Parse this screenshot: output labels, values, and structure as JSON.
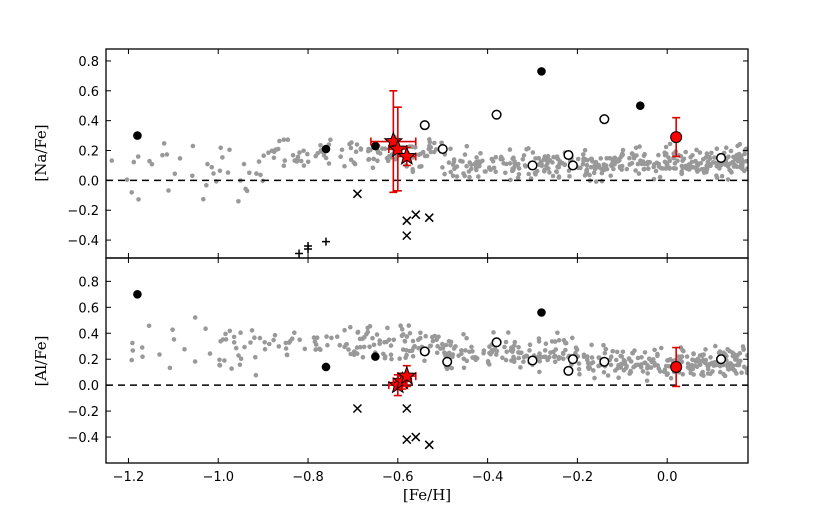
{
  "chart_data": [
    {
      "type": "scatter",
      "panel": "top",
      "ylabel": "[Na/Fe]",
      "xlim": [
        -1.25,
        0.18
      ],
      "ylim": [
        -0.52,
        0.88
      ],
      "yticks": [
        -0.4,
        -0.2,
        0.0,
        0.2,
        0.4,
        0.6,
        0.8
      ],
      "ytick_labels": [
        "−0.4",
        "−0.2",
        "0.0",
        "0.2",
        "0.4",
        "0.6",
        "0.8"
      ],
      "reference_line_y": 0.0,
      "colors": {
        "field": "#999999",
        "highlight": "#ff0000",
        "errorbar": "#dd0000",
        "markers": "#000000"
      },
      "series": [
        {
          "marker": "filled-circle",
          "points": [
            [
              -1.18,
              0.3
            ],
            [
              -0.76,
              0.21
            ],
            [
              -0.65,
              0.23
            ],
            [
              -0.28,
              0.73
            ],
            [
              -0.06,
              0.5
            ]
          ]
        },
        {
          "marker": "open-circle",
          "points": [
            [
              -0.54,
              0.37
            ],
            [
              -0.5,
              0.21
            ],
            [
              -0.38,
              0.44
            ],
            [
              -0.3,
              0.1
            ],
            [
              -0.22,
              0.17
            ],
            [
              -0.21,
              0.1
            ],
            [
              -0.14,
              0.41
            ],
            [
              0.12,
              0.15
            ]
          ]
        },
        {
          "marker": "cross",
          "points": [
            [
              -0.69,
              -0.09
            ],
            [
              -0.58,
              -0.27
            ],
            [
              -0.58,
              -0.37
            ],
            [
              -0.56,
              -0.23
            ],
            [
              -0.53,
              -0.25
            ]
          ]
        },
        {
          "marker": "plus",
          "points": [
            [
              -0.82,
              -0.49
            ],
            [
              -0.8,
              -0.46
            ],
            [
              -0.8,
              -0.44
            ],
            [
              -0.76,
              -0.41
            ]
          ]
        },
        {
          "marker": "red-circle",
          "points": [
            {
              "x": 0.02,
              "y": 0.29,
              "yerr": 0.13
            }
          ]
        },
        {
          "marker": "red-star",
          "points": [
            {
              "x": -0.61,
              "y": 0.26,
              "xerr": 0.05,
              "yerr": 0.34
            },
            {
              "x": -0.6,
              "y": 0.21,
              "xerr": 0.02,
              "yerr": 0.28
            },
            {
              "x": -0.58,
              "y": 0.16,
              "xerr": 0.02,
              "yerr": 0.06
            }
          ]
        }
      ]
    },
    {
      "type": "scatter",
      "panel": "bottom",
      "ylabel": "[Al/Fe]",
      "xlabel": "[Fe/H]",
      "xlim": [
        -1.25,
        0.18
      ],
      "ylim": [
        -0.6,
        0.98
      ],
      "yticks": [
        -0.4,
        -0.2,
        0.0,
        0.2,
        0.4,
        0.6,
        0.8
      ],
      "ytick_labels": [
        "−0.4",
        "−0.2",
        "0.0",
        "0.2",
        "0.4",
        "0.6",
        "0.8"
      ],
      "xticks": [
        -1.2,
        -1.0,
        -0.8,
        -0.6,
        -0.4,
        -0.2,
        0.0
      ],
      "xtick_labels": [
        "−1.2",
        "−1.0",
        "−0.8",
        "−0.6",
        "−0.4",
        "−0.2",
        "0.0"
      ],
      "reference_line_y": 0.0,
      "series": [
        {
          "marker": "filled-circle",
          "points": [
            [
              -1.18,
              0.7
            ],
            [
              -0.76,
              0.14
            ],
            [
              -0.65,
              0.22
            ],
            [
              -0.28,
              0.56
            ]
          ]
        },
        {
          "marker": "open-circle",
          "points": [
            [
              -0.54,
              0.26
            ],
            [
              -0.49,
              0.18
            ],
            [
              -0.38,
              0.33
            ],
            [
              -0.3,
              0.19
            ],
            [
              -0.22,
              0.11
            ],
            [
              -0.21,
              0.2
            ],
            [
              -0.14,
              0.18
            ],
            [
              0.12,
              0.2
            ]
          ]
        },
        {
          "marker": "cross",
          "points": [
            [
              -0.69,
              -0.18
            ],
            [
              -0.58,
              -0.18
            ],
            [
              -0.58,
              -0.42
            ],
            [
              -0.56,
              -0.4
            ],
            [
              -0.53,
              -0.46
            ]
          ]
        },
        {
          "marker": "red-circle",
          "points": [
            {
              "x": 0.02,
              "y": 0.14,
              "yerr": 0.15
            }
          ]
        },
        {
          "marker": "red-star",
          "points": [
            {
              "x": -0.6,
              "y": 0.0,
              "xerr": 0.02,
              "yerr": 0.08
            },
            {
              "x": -0.59,
              "y": 0.03,
              "xerr": 0.02,
              "yerr": 0.06
            },
            {
              "x": -0.58,
              "y": 0.07,
              "xerr": 0.02,
              "yerr": 0.08
            }
          ]
        }
      ]
    }
  ]
}
